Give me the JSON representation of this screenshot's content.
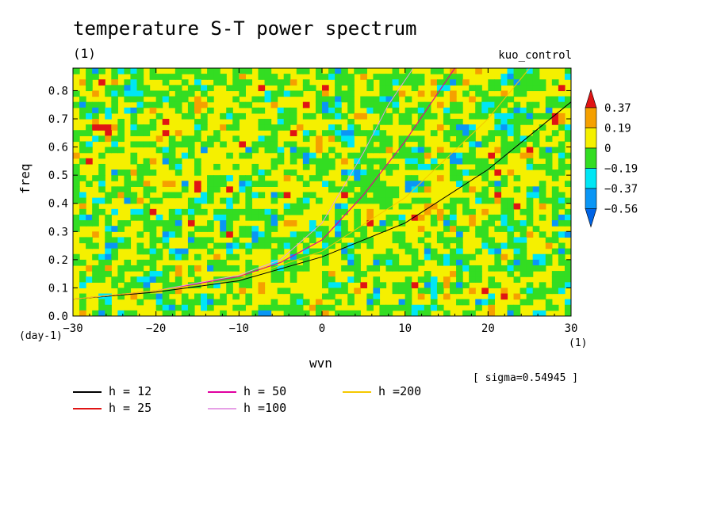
{
  "header": {
    "title": "temperature S-T power spectrum",
    "units": "(1)",
    "experiment": "kuo_control"
  },
  "axes": {
    "xlabel": "wvn",
    "ylabel": "freq",
    "y_unit": "(day-1)",
    "x_unit": "(1)",
    "xticks": [
      "−30",
      "−20",
      "−10",
      "0",
      "10",
      "20",
      "30"
    ],
    "yticks": [
      "0.0",
      "0.1",
      "0.2",
      "0.3",
      "0.4",
      "0.5",
      "0.6",
      "0.7",
      "0.8"
    ]
  },
  "sigma_text": "[ sigma=0.54945 ]",
  "colorbar": {
    "levels": [
      "0.37",
      "0.19",
      "0",
      "−0.19",
      "−0.37",
      "−0.56"
    ],
    "colors": [
      "#e01414",
      "#f5a000",
      "#f5f000",
      "#33dd22",
      "#00e6f5",
      "#0a96f5",
      "#0064e6"
    ]
  },
  "legend": [
    {
      "label": "h = 12",
      "color": "#000000"
    },
    {
      "label": "h = 25",
      "color": "#e01414"
    },
    {
      "label": "h = 50",
      "color": "#e000a0"
    },
    {
      "label": "h =100",
      "color": "#e6a0e6"
    },
    {
      "label": "h =200",
      "color": "#f5c800"
    }
  ],
  "chart_data": {
    "type": "heatmap",
    "title": "temperature S-T power spectrum",
    "xlabel": "wvn",
    "ylabel": "freq",
    "xlim": [
      -30,
      30
    ],
    "ylim": [
      0.0,
      0.88
    ],
    "color_levels": [
      -0.56,
      -0.37,
      -0.19,
      0,
      0.19,
      0.37
    ],
    "dispersion_curves": [
      {
        "name": "h = 12",
        "x": [
          -30,
          -20,
          -10,
          0,
          10,
          20,
          30
        ],
        "y": [
          0.06,
          0.085,
          0.125,
          0.21,
          0.33,
          0.52,
          0.76
        ]
      },
      {
        "name": "h = 25",
        "x": [
          -30,
          -20,
          -10,
          -5,
          0,
          5,
          10,
          16
        ],
        "y": [
          0.06,
          0.09,
          0.14,
          0.19,
          0.27,
          0.43,
          0.62,
          0.88
        ]
      },
      {
        "name": "h = 50",
        "x": [
          -30,
          -20,
          -10,
          -5,
          0,
          5,
          10,
          16
        ],
        "y": [
          0.06,
          0.09,
          0.14,
          0.19,
          0.27,
          0.43,
          0.62,
          0.88
        ]
      },
      {
        "name": "h =100",
        "x": [
          -30,
          -20,
          -10,
          -5,
          0,
          5,
          8,
          11
        ],
        "y": [
          0.06,
          0.09,
          0.145,
          0.2,
          0.33,
          0.58,
          0.75,
          0.88
        ]
      },
      {
        "name": "h =200",
        "x": [
          -30,
          -20,
          -10,
          0,
          10,
          20,
          25
        ],
        "y": [
          0.06,
          0.09,
          0.13,
          0.23,
          0.42,
          0.7,
          0.88
        ]
      }
    ]
  }
}
